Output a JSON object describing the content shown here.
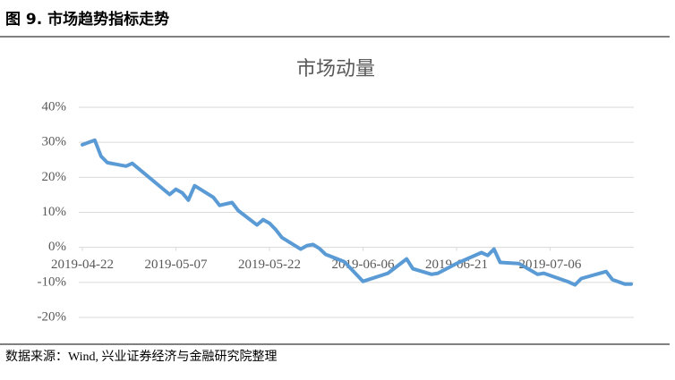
{
  "header": {
    "title": "图 9. 市场趋势指标走势"
  },
  "chart_data": {
    "type": "line",
    "title": "市场动量",
    "color": "#5b9bd5",
    "grid": true,
    "x": [
      "2019-04-22",
      "2019-04-24",
      "2019-04-25",
      "2019-04-26",
      "2019-04-29",
      "2019-04-30",
      "2019-05-06",
      "2019-05-07",
      "2019-05-08",
      "2019-05-09",
      "2019-05-10",
      "2019-05-13",
      "2019-05-14",
      "2019-05-16",
      "2019-05-17",
      "2019-05-20",
      "2019-05-21",
      "2019-05-22",
      "2019-05-23",
      "2019-05-24",
      "2019-05-27",
      "2019-05-28",
      "2019-05-29",
      "2019-05-30",
      "2019-05-31",
      "2019-06-03",
      "2019-06-06",
      "2019-06-10",
      "2019-06-13",
      "2019-06-14",
      "2019-06-17",
      "2019-06-18",
      "2019-06-21",
      "2019-06-25",
      "2019-06-26",
      "2019-06-27",
      "2019-06-28",
      "2019-07-01",
      "2019-07-04",
      "2019-07-05",
      "2019-07-09",
      "2019-07-10",
      "2019-07-11",
      "2019-07-15",
      "2019-07-16",
      "2019-07-18",
      "2019-07-19"
    ],
    "values": [
      29.3,
      30.6,
      26,
      24.2,
      23.2,
      24,
      15.1,
      16.6,
      15.6,
      13.5,
      17.6,
      14.3,
      12,
      12.8,
      10.5,
      6.4,
      7.9,
      6.9,
      5.1,
      2.8,
      -0.5,
      0.5,
      0.8,
      -0.3,
      -2,
      -4.1,
      -9.7,
      -7.4,
      -3.3,
      -6.1,
      -7.7,
      -7.4,
      -4.6,
      -1.5,
      -2.3,
      -0.5,
      -4.3,
      -4.6,
      -7.7,
      -7.4,
      -9.9,
      -10.7,
      -8.9,
      -6.9,
      -9.2,
      -10.5,
      -10.5
    ],
    "xlim": [
      "2019-04-22",
      "2019-07-19"
    ],
    "xticks": [
      "2019-04-22",
      "2019-05-07",
      "2019-05-22",
      "2019-06-06",
      "2019-06-21",
      "2019-07-06"
    ],
    "ylim": [
      -20,
      40
    ],
    "yticks": [
      {
        "value": -20,
        "label": "-20%"
      },
      {
        "value": -10,
        "label": "-10%"
      },
      {
        "value": 0,
        "label": "0%"
      },
      {
        "value": 10,
        "label": "10%"
      },
      {
        "value": 20,
        "label": "20%"
      },
      {
        "value": 30,
        "label": "30%"
      },
      {
        "value": 40,
        "label": "40%"
      }
    ]
  },
  "source": {
    "text": "数据来源：Wind, 兴业证券经济与金融研究院整理"
  }
}
